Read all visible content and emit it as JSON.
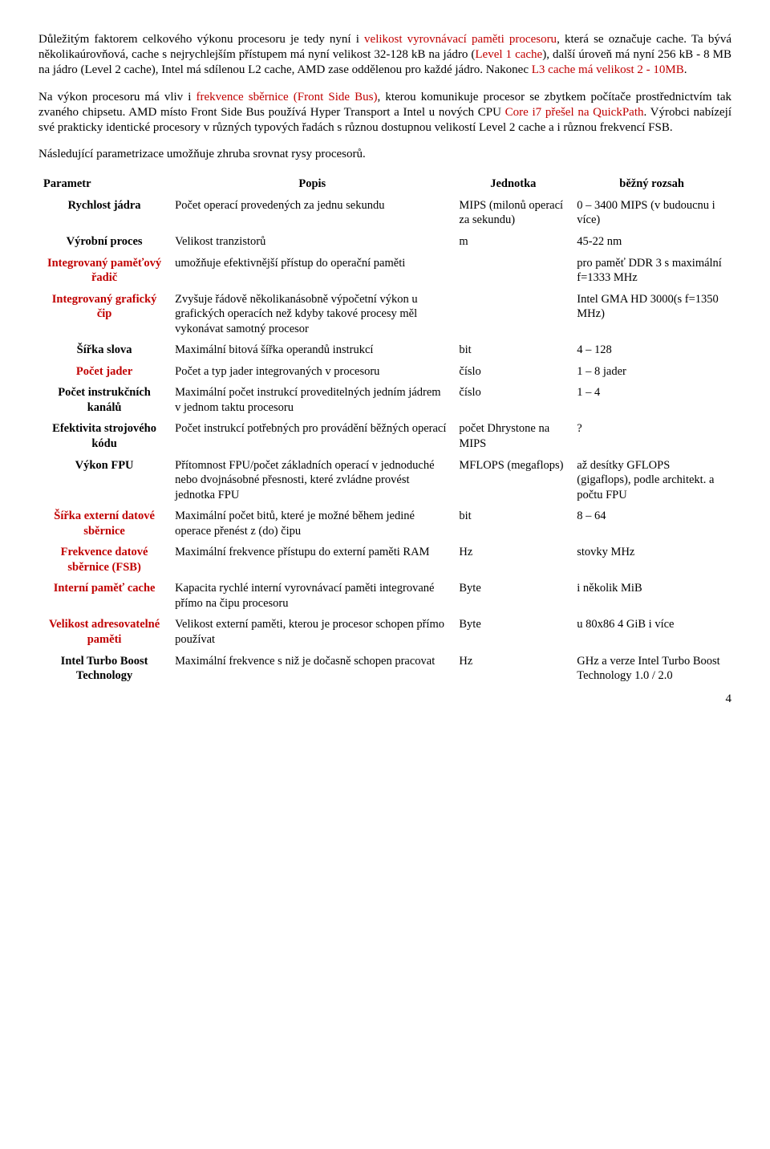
{
  "para1": {
    "pre": "Důležitým faktorem celkového výkonu procesoru je tedy nyní i ",
    "red1": "velikost vyrovnávací paměti procesoru",
    "mid1": ", která se označuje cache. Ta bývá několikaúrovňová, cache s nejrychlejším přístupem má nyní velikost 32-128 kB na jádro (",
    "red2": "Level 1 cache",
    "mid2": "), další úroveň má nyní 256 kB - 8 MB na jádro (Level 2 cache), Intel má sdílenou L2 cache, AMD zase oddělenou pro každé jádro. Nakonec ",
    "red3": "L3 cache má velikost 2 - 10MB",
    "post": "."
  },
  "para2": {
    "pre": "Na výkon procesoru má vliv i ",
    "red1": "frekvence sběrnice (Front Side Bus)",
    "mid1": ", kterou komunikuje procesor se zbytkem počítače prostřednictvím tak zvaného chipsetu. AMD místo Front Side Bus používá Hyper Transport a Intel u nových CPU ",
    "red2": "Core i7 přešel na QuickPath",
    "post": ". Výrobci nabízejí své prakticky identické procesory v různých typových řadách s různou dostupnou velikostí Level 2 cache a i různou frekvencí FSB."
  },
  "para3": "Následující parametrizace umožňuje zhruba srovnat rysy procesorů.",
  "headers": {
    "parametr": "Parametr",
    "popis": "Popis",
    "jednotka": "Jednotka",
    "rozsah": "běžný rozsah"
  },
  "rows": [
    {
      "param": "Rychlost jádra",
      "popis": "Počet operací provedených za jednu sekundu",
      "jednotka": "MIPS (milonů operací za sekundu)",
      "rozsah": "0 – 3400 MIPS (v budoucnu i více)"
    },
    {
      "param": "Výrobní proces",
      "popis": "Velikost tranzistorů",
      "jednotka": "m",
      "rozsah": "45-22 nm"
    },
    {
      "param": "Integrovaný paměťový řadič",
      "red": true,
      "popis": "umožňuje efektivnější přístup do operační paměti",
      "jednotka": "",
      "rozsah": "pro paměť DDR 3 s maximální f=1333 MHz"
    },
    {
      "param": "Integrovaný grafický čip",
      "red": true,
      "popis": "Zvyšuje řádově několikanásobně výpočetní výkon u grafických operacích než kdyby takové procesy měl vykonávat samotný procesor",
      "jednotka": "",
      "rozsah": "Intel GMA HD 3000(s f=1350 MHz)"
    },
    {
      "param": "Šířka slova",
      "popis": "Maximální bitová šířka operandů instrukcí",
      "jednotka": "bit",
      "rozsah": "4 – 128"
    },
    {
      "param": "Počet jader",
      "red": true,
      "popis": "Počet a typ jader integrovaných v procesoru",
      "jednotka": "číslo",
      "rozsah": "1 – 8 jader"
    },
    {
      "param": "Počet instrukčních kanálů",
      "popis": "Maximální počet instrukcí proveditelných jedním jádrem v jednom taktu procesoru",
      "jednotka": "číslo",
      "rozsah": "1 – 4"
    },
    {
      "param": "Efektivita strojového kódu",
      "popis": "Počet instrukcí potřebných pro provádění běžných operací",
      "jednotka": "počet Dhrystone na MIPS",
      "rozsah": "?"
    },
    {
      "param": "Výkon FPU",
      "popis": "Přítomnost FPU/počet základních operací v jednoduché nebo dvojnásobné přesnosti, které zvládne provést jednotka FPU",
      "jednotka": "MFLOPS (megaflops)",
      "rozsah": "až desítky GFLOPS (gigaflops), podle architekt. a počtu FPU"
    },
    {
      "param": "Šířka externí datové sběrnice",
      "red": true,
      "popis": "Maximální počet bitů, které je možné během jediné operace přenést z (do) čipu",
      "jednotka": "bit",
      "rozsah": "8 – 64"
    },
    {
      "param": "Frekvence datové sběrnice (FSB)",
      "red": true,
      "popis": "Maximální frekvence přístupu do externí paměti RAM",
      "jednotka": "Hz",
      "rozsah": "stovky MHz"
    },
    {
      "param": "Interní paměť cache",
      "red": true,
      "popis": "Kapacita rychlé interní vyrovnávací paměti integrované přímo na čipu procesoru",
      "jednotka": "Byte",
      "rozsah": "i několik MiB"
    },
    {
      "param": "Velikost adresovatelné paměti",
      "red": true,
      "popis": "Velikost externí paměti, kterou je procesor schopen přímo používat",
      "jednotka": "Byte",
      "rozsah": "u 80x86 4 GiB i více"
    },
    {
      "param": "Intel Turbo Boost Technology",
      "popis": "Maximální frekvence s niž je dočasně schopen pracovat",
      "jednotka": "Hz",
      "rozsah": "GHz a verze Intel Turbo Boost Technology 1.0 / 2.0"
    }
  ],
  "pagenum": "4"
}
